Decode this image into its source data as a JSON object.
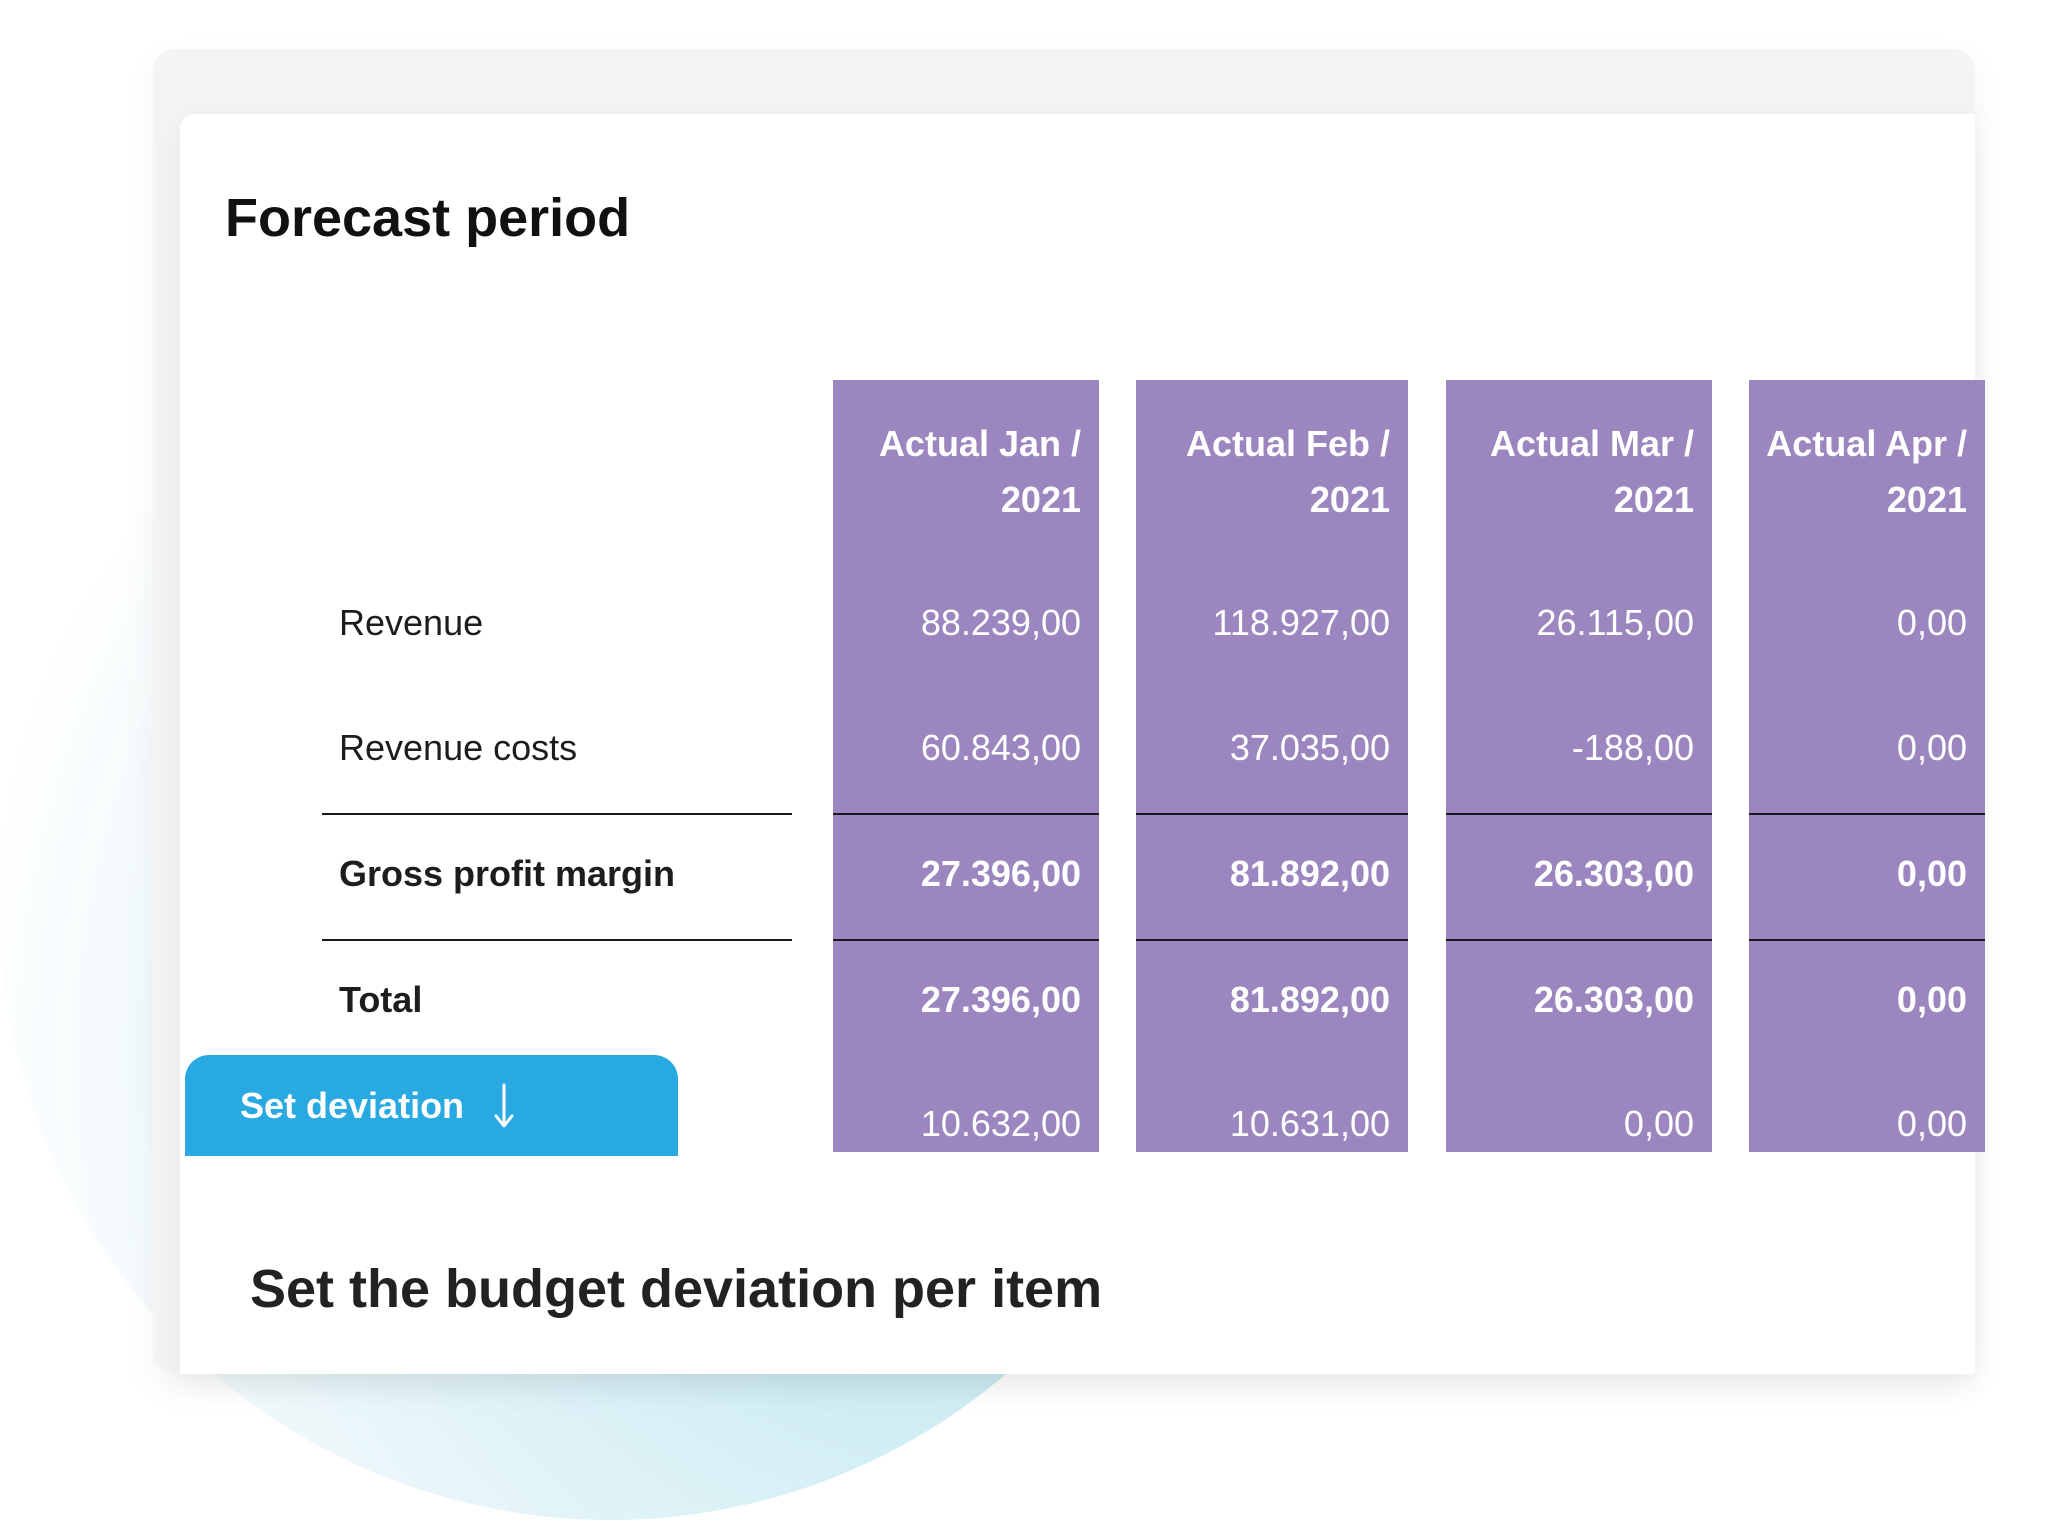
{
  "title": "Forecast period",
  "subtitle": "Set the budget deviation per item",
  "rows": {
    "revenue": "Revenue",
    "revenue_costs": "Revenue costs",
    "gross_profit": "Gross profit margin",
    "total": "Total"
  },
  "button": {
    "label": "Set deviation",
    "icon": "arrow-down-icon"
  },
  "colors": {
    "column": "#9b86bf",
    "button": "#29a9e1"
  },
  "columns": [
    {
      "line1": "Actual Jan /",
      "line2": "2021",
      "revenue": "88.239,00",
      "revenue_costs": "60.843,00",
      "gross_profit": "27.396,00",
      "total": "27.396,00",
      "deviation": "10.632,00"
    },
    {
      "line1": "Actual Feb /",
      "line2": "2021",
      "revenue": "118.927,00",
      "revenue_costs": "37.035,00",
      "gross_profit": "81.892,00",
      "total": "81.892,00",
      "deviation": "10.631,00"
    },
    {
      "line1": "Actual Mar /",
      "line2": "2021",
      "revenue": "26.115,00",
      "revenue_costs": "-188,00",
      "gross_profit": "26.303,00",
      "total": "26.303,00",
      "deviation": "0,00"
    },
    {
      "line1": "Actual Apr /",
      "line2": "2021",
      "revenue": "0,00",
      "revenue_costs": "0,00",
      "gross_profit": "0,00",
      "total": "0,00",
      "deviation": "0,00"
    }
  ]
}
